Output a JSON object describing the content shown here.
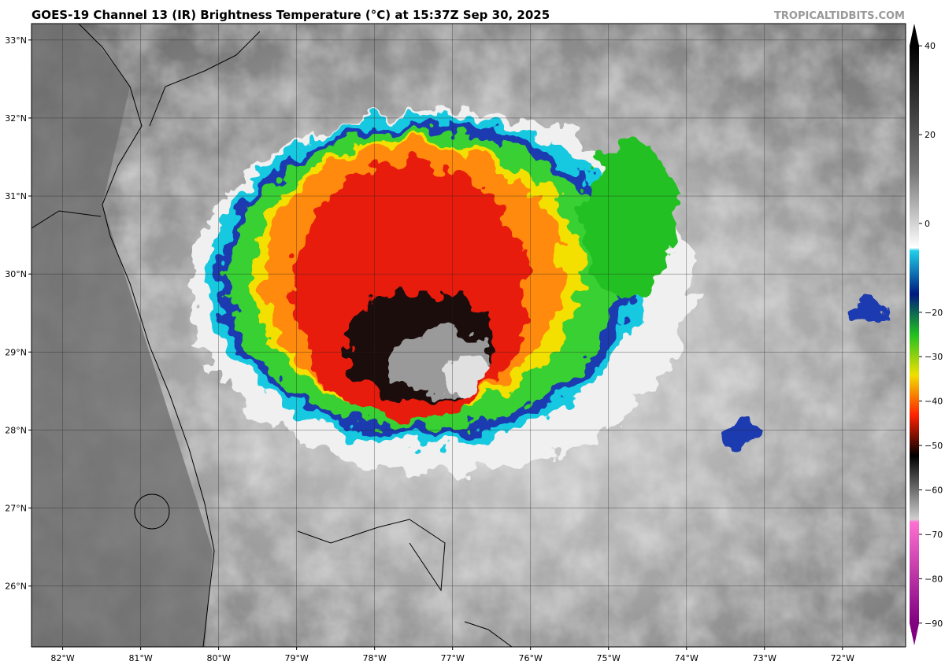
{
  "header": {
    "title": "GOES-19 Channel 13 (IR) Brightness Temperature (°C) at 15:37Z Sep 30, 2025",
    "watermark": "TROPICALTIDBITS.COM"
  },
  "map": {
    "lon_range": [
      -82.4,
      -71.19
    ],
    "lat_range": [
      25.22,
      33.21
    ],
    "lat_labels": [
      {
        "value": 33,
        "label": "33°N"
      },
      {
        "value": 32,
        "label": "32°N"
      },
      {
        "value": 31,
        "label": "31°N"
      },
      {
        "value": 30,
        "label": "30°N"
      },
      {
        "value": 29,
        "label": "29°N"
      },
      {
        "value": 28,
        "label": "28°N"
      },
      {
        "value": 27,
        "label": "27°N"
      },
      {
        "value": 26,
        "label": "26°N"
      }
    ],
    "lon_labels": [
      {
        "value": -82,
        "label": "82°W"
      },
      {
        "value": -81,
        "label": "81°W"
      },
      {
        "value": -80,
        "label": "80°W"
      },
      {
        "value": -79,
        "label": "79°W"
      },
      {
        "value": -78,
        "label": "78°W"
      },
      {
        "value": -77,
        "label": "77°W"
      },
      {
        "value": -76,
        "label": "76°W"
      },
      {
        "value": -75,
        "label": "75°W"
      },
      {
        "value": -74,
        "label": "74°W"
      },
      {
        "value": -73,
        "label": "73°W"
      },
      {
        "value": -72,
        "label": "72°W"
      }
    ]
  },
  "colorbar": {
    "range": [
      -95,
      45
    ],
    "ticks": [
      40,
      20,
      0,
      {
        "value": -20,
        "label": "−20"
      },
      {
        "value": -30,
        "label": "−30"
      },
      {
        "value": -40,
        "label": "−40"
      },
      {
        "value": -50,
        "label": "−50"
      },
      {
        "value": -60,
        "label": "−60"
      },
      {
        "value": -70,
        "label": "−70"
      },
      {
        "value": -80,
        "label": "−80"
      },
      {
        "value": -90,
        "label": "−90"
      }
    ]
  }
}
